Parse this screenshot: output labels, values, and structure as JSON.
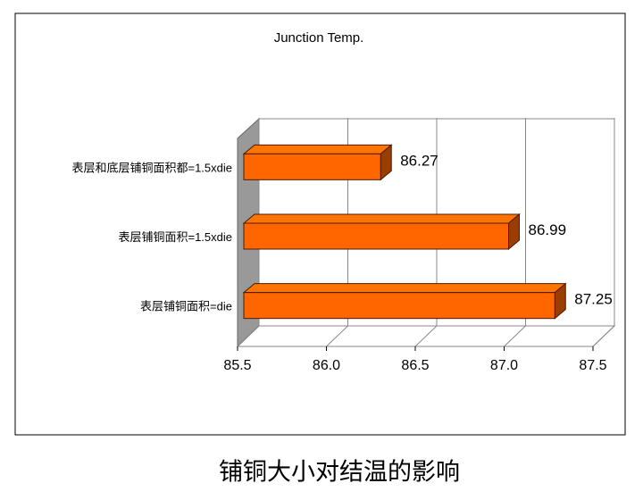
{
  "chart_data": {
    "type": "bar",
    "orientation": "horizontal",
    "title": "Junction Temp.",
    "categories": [
      "表层和底层铺铜面积都=1.5xdie",
      "表层铺铜面积=1.5xdie",
      "表层铺铜面积=die"
    ],
    "values": [
      86.27,
      86.99,
      87.25
    ],
    "color": "#ff6600",
    "xlim": [
      85.5,
      87.5
    ],
    "xticks": [
      85.5,
      {
        "value": 86,
        "label": "86.0"
      },
      86.5,
      {
        "value": 87,
        "label": "87.0"
      },
      87.5
    ],
    "grid": true
  },
  "caption": "铺铜大小对结温的影响"
}
